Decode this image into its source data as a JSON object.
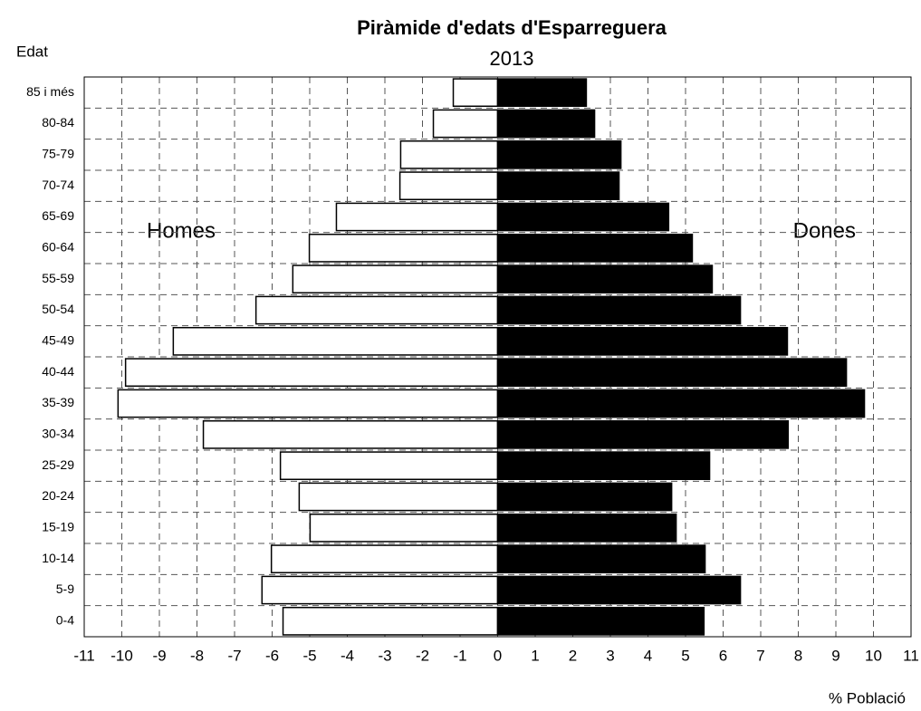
{
  "chart_data": {
    "type": "pyramid",
    "title": "Piràmide d'edats d'Esparreguera",
    "subtitle": "2013",
    "y_axis_label": "Edat",
    "x_axis_label": "% Població",
    "categories": [
      "0-4",
      "5-9",
      "10-14",
      "15-19",
      "20-24",
      "25-29",
      "30-34",
      "35-39",
      "40-44",
      "45-49",
      "50-54",
      "55-59",
      "60-64",
      "65-69",
      "70-74",
      "75-79",
      "80-84",
      "85 i més"
    ],
    "series": [
      {
        "name": "Homes",
        "color": "#ffffff",
        "values": [
          -5.71,
          -6.27,
          -6.02,
          -4.99,
          -5.28,
          -5.78,
          -7.83,
          -10.1,
          -9.9,
          -8.63,
          -6.43,
          -5.45,
          -5.01,
          -4.29,
          -2.6,
          -2.58,
          -1.71,
          -1.18
        ]
      },
      {
        "name": "Dones",
        "color": "#000000",
        "values": [
          5.49,
          6.46,
          5.52,
          4.75,
          4.63,
          5.64,
          7.73,
          9.76,
          9.28,
          7.71,
          6.46,
          5.71,
          5.18,
          4.55,
          3.23,
          3.28,
          2.58,
          2.36
        ]
      }
    ],
    "xlim": [
      -11,
      11
    ],
    "xticks": [
      -11,
      -10,
      -9,
      -8,
      -7,
      -6,
      -5,
      -4,
      -3,
      -2,
      -1,
      0,
      1,
      2,
      3,
      4,
      5,
      6,
      7,
      8,
      9,
      10,
      11
    ],
    "grid": true
  }
}
